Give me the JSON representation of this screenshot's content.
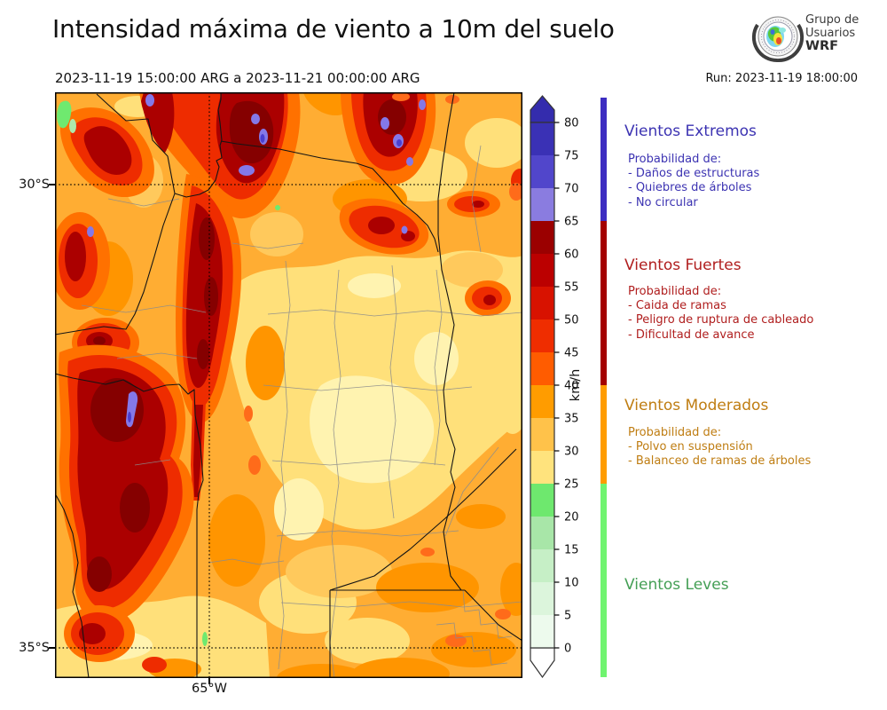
{
  "header": {
    "title": "Intensidad máxima de viento a 10m del suelo",
    "period": "2023-11-19 15:00:00 ARG  a  2023-11-21 00:00:00 ARG",
    "run": "Run: 2023-11-19 18:00:00"
  },
  "logo": {
    "line1": "Grupo de",
    "line2": "Usuarios",
    "line3": "WRF"
  },
  "map": {
    "lat_label_30": "30°S",
    "lat_label_35": "35°S",
    "lon_label_65": "65°W"
  },
  "colorbar": {
    "unit": "km/h",
    "min": 0,
    "max": 80,
    "step": 5,
    "tick_values": [
      0,
      5,
      10,
      15,
      20,
      25,
      30,
      35,
      40,
      45,
      50,
      55,
      60,
      65,
      70,
      75,
      80
    ],
    "segment_colors": [
      "#EDFAED",
      "#DCF5DC",
      "#C6EFC6",
      "#A8E6A8",
      "#6EE86E",
      "#FFE37D",
      "#FFC24A",
      "#FF9C00",
      "#FF5C00",
      "#EF2D00",
      "#D81200",
      "#BB0000",
      "#9B0000",
      "#8A7CE0",
      "#5146CB",
      "#3A31B5"
    ],
    "over_color": "#342CAD",
    "under_color": "#FFFFFF"
  },
  "categories": [
    {
      "title": "Vientos Extremos",
      "text_color": "#3C33B2",
      "bar_color": "#3D2EC1",
      "range_kmh": [
        65,
        85
      ],
      "details": [
        "Probabilidad de:",
        "- Daños de estructuras",
        "- Quiebres de árboles",
        "- No circular"
      ]
    },
    {
      "title": "Vientos Fuertes",
      "text_color": "#B01E1E",
      "bar_color": "#A40000",
      "range_kmh": [
        40,
        65
      ],
      "details": [
        "Probabilidad de:",
        "- Caida de ramas",
        "- Peligro de ruptura de cableado",
        "- Dificultad de avance"
      ]
    },
    {
      "title": "Vientos Moderados",
      "text_color": "#BF7D12",
      "bar_color": "#FF9C00",
      "range_kmh": [
        25,
        40
      ],
      "details": [
        "Probabilidad de:",
        "- Polvo en suspensión",
        "- Balanceo de ramas de árboles"
      ]
    },
    {
      "title": "Vientos Leves",
      "text_color": "#449F55",
      "bar_color": "#70F470",
      "range_kmh": [
        -5,
        25
      ],
      "details": []
    }
  ]
}
